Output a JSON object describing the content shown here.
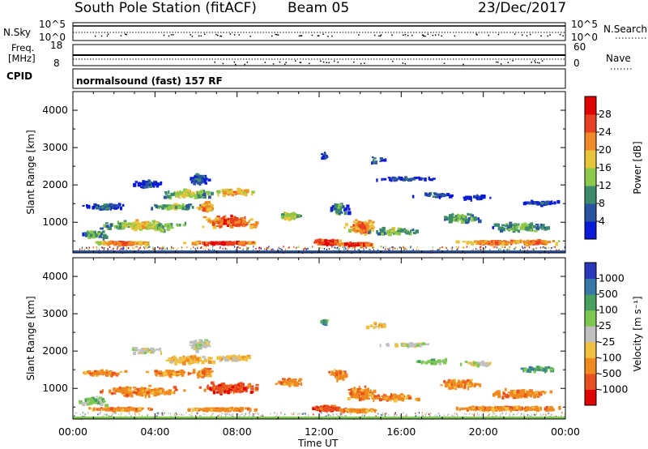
{
  "header": {
    "station": "South Pole Station (fitACF)",
    "beam": "Beam 05",
    "date": "23/Dec/2017"
  },
  "left_labels": {
    "nsky": "N.Sky",
    "nsky_top": "10^5",
    "nsky_bottom": "10^0",
    "freq_line1": "Freq.",
    "freq_line2": "[MHz]",
    "freq_top": "18",
    "freq_bottom": "8",
    "cpid": "CPID"
  },
  "right_labels": {
    "nsearch": "N.Search",
    "nsearch_top": "10^5",
    "nsearch_bottom": "10^0",
    "nave": "Nave",
    "nave_top": "60",
    "nave_bottom": "0"
  },
  "program": "normalsound (fast) 157 RF",
  "x_axis": {
    "label": "Time UT",
    "ticks": [
      "00:00",
      "04:00",
      "08:00",
      "12:00",
      "16:00",
      "20:00",
      "00:00"
    ]
  },
  "chart_data": [
    {
      "type": "heatmap",
      "name": "power",
      "ylabel": "Slant Range [km]",
      "yticks": [
        "1000",
        "2000",
        "3000",
        "4000"
      ],
      "ylim": [
        180,
        4500
      ],
      "xlim": [
        0,
        24
      ],
      "colorbar": {
        "label": "Power [dB]",
        "ticks": [
          "4",
          "8",
          "12",
          "16",
          "20",
          "24",
          "28"
        ],
        "colors": [
          "#0a1ad8",
          "#2b54a0",
          "#3c8b6c",
          "#8cc84a",
          "#e8c43a",
          "#f08a28",
          "#e84020",
          "#e00000"
        ]
      }
    },
    {
      "type": "heatmap",
      "name": "velocity",
      "ylabel": "Slant Range [km]",
      "yticks": [
        "1000",
        "2000",
        "3000",
        "4000"
      ],
      "ylim": [
        180,
        4500
      ],
      "xlim": [
        0,
        24
      ],
      "colorbar": {
        "label": "Velocity [m s⁻¹]",
        "ticks": [
          "1000",
          "500",
          "100",
          "25",
          "-25",
          "-100",
          "-500",
          "-1000"
        ],
        "colors": [
          "#2838b8",
          "#3878a8",
          "#48a060",
          "#7cc850",
          "#c0c0c0",
          "#f0c040",
          "#f08a20",
          "#e85020",
          "#e00000"
        ]
      }
    }
  ]
}
